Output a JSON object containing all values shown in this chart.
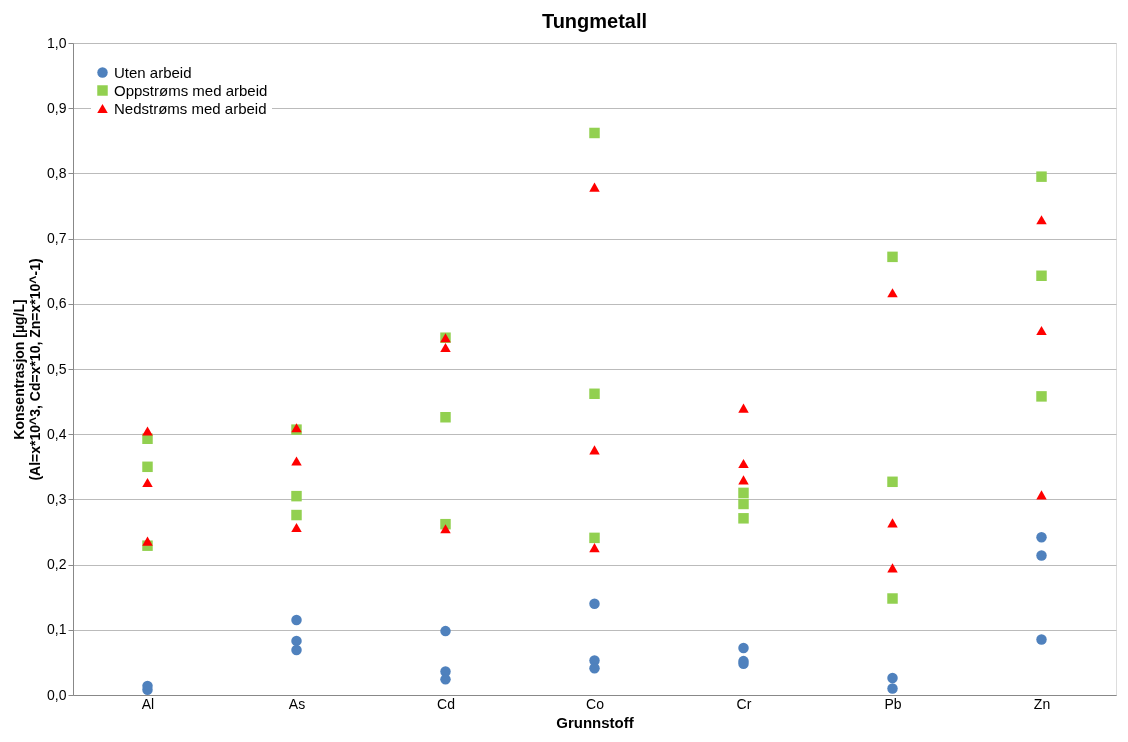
{
  "chart_data": {
    "type": "scatter",
    "title": "Tungmetall",
    "xlabel": "Grunnstoff",
    "ylabel": "Konsentrasjon [µg/L]\n(Al=x*10^3, Cd=x*10, Zn=x*10^-1)",
    "categories": [
      "Al",
      "As",
      "Cd",
      "Co",
      "Cr",
      "Pb",
      "Zn"
    ],
    "series": [
      {
        "name": "Uten arbeid",
        "color": "#4f81bd",
        "marker": "circle",
        "x": [
          "Al",
          "Al",
          "As",
          "As",
          "As",
          "Cd",
          "Cd",
          "Cd",
          "Co",
          "Co",
          "Co",
          "Cr",
          "Cr",
          "Cr",
          "Pb",
          "Pb",
          "Zn",
          "Zn",
          "Zn"
        ],
        "values": [
          0.008,
          0.014,
          0.115,
          0.083,
          0.069,
          0.098,
          0.036,
          0.024,
          0.14,
          0.053,
          0.041,
          0.072,
          0.052,
          0.048,
          0.026,
          0.01,
          0.242,
          0.214,
          0.085
        ]
      },
      {
        "name": "Oppstrøms med arbeid",
        "color": "#92d050",
        "marker": "square",
        "x": [
          "Al",
          "Al",
          "Al",
          "As",
          "As",
          "As",
          "Cd",
          "Cd",
          "Cd",
          "Co",
          "Co",
          "Co",
          "Cr",
          "Cr",
          "Cr",
          "Pb",
          "Pb",
          "Pb",
          "Zn",
          "Zn",
          "Zn"
        ],
        "values": [
          0.393,
          0.35,
          0.229,
          0.407,
          0.305,
          0.276,
          0.548,
          0.426,
          0.262,
          0.862,
          0.462,
          0.241,
          0.31,
          0.293,
          0.271,
          0.672,
          0.327,
          0.148,
          0.795,
          0.643,
          0.458
        ]
      },
      {
        "name": "Nedstrøms med arbeid",
        "color": "#ff0000",
        "marker": "triangle",
        "x": [
          "Al",
          "Al",
          "Al",
          "As",
          "As",
          "As",
          "Cd",
          "Cd",
          "Cd",
          "Co",
          "Co",
          "Co",
          "Cr",
          "Cr",
          "Cr",
          "Pb",
          "Pb",
          "Pb",
          "Zn",
          "Zn",
          "Zn"
        ],
        "values": [
          0.405,
          0.326,
          0.236,
          0.41,
          0.359,
          0.257,
          0.548,
          0.533,
          0.255,
          0.779,
          0.376,
          0.226,
          0.44,
          0.355,
          0.33,
          0.617,
          0.264,
          0.195,
          0.729,
          0.559,
          0.307
        ]
      }
    ],
    "ylim": [
      0,
      1
    ],
    "yticks": [
      {
        "value": 0,
        "label": "0,0"
      },
      {
        "value": 0.1,
        "label": "0,1"
      },
      {
        "value": 0.2,
        "label": "0,2"
      },
      {
        "value": 0.3,
        "label": "0,3"
      },
      {
        "value": 0.4,
        "label": "0,4"
      },
      {
        "value": 0.5,
        "label": "0,5"
      },
      {
        "value": 0.6,
        "label": "0,6"
      },
      {
        "value": 0.7,
        "label": "0,7"
      },
      {
        "value": 0.8,
        "label": "0,8"
      },
      {
        "value": 0.9,
        "label": "0,9"
      },
      {
        "value": 1,
        "label": "1,0"
      }
    ],
    "grid": "y",
    "legend": "top left"
  }
}
